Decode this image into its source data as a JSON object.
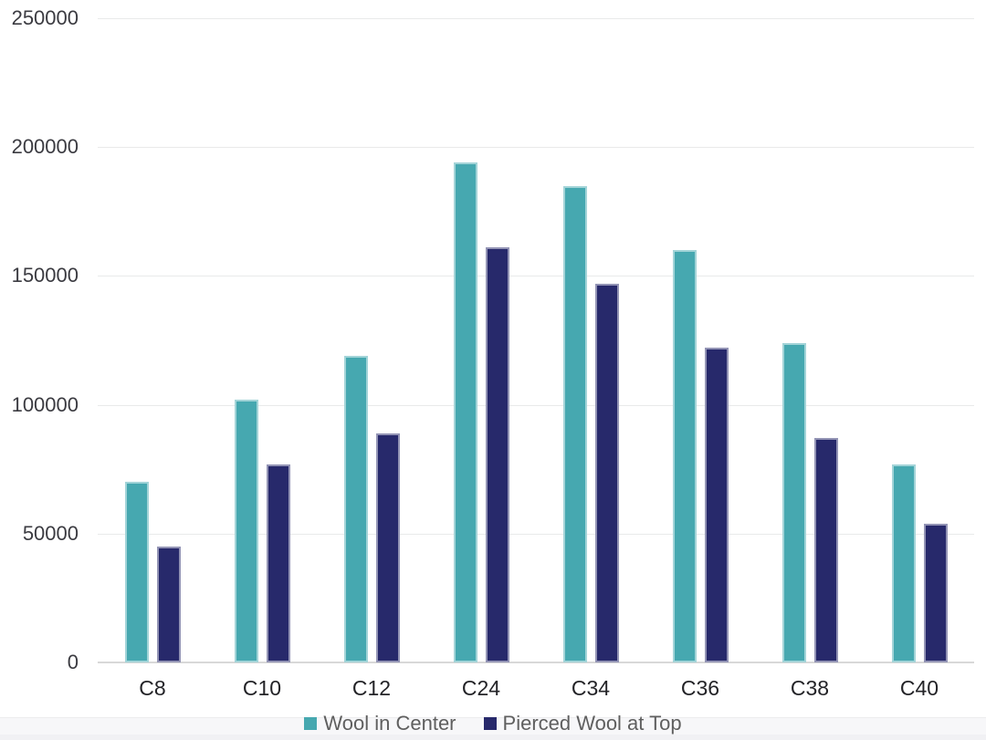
{
  "chart_data": {
    "type": "bar",
    "title": "",
    "categories": [
      "C8",
      "C10",
      "C12",
      "C24",
      "C34",
      "C36",
      "C38",
      "C40"
    ],
    "series": [
      {
        "name": "Wool in Center",
        "color": "#46A8B0",
        "values": [
          70000,
          102000,
          119000,
          194000,
          185000,
          160000,
          124000,
          77000
        ]
      },
      {
        "name": "Pierced Wool at Top",
        "color": "#27296B",
        "values": [
          45000,
          77000,
          89000,
          161000,
          147000,
          122000,
          87000,
          54000
        ]
      }
    ],
    "xlabel": "",
    "ylabel": "",
    "ylim": [
      0,
      250000
    ],
    "yticks": [
      0,
      50000,
      100000,
      150000,
      200000,
      250000
    ],
    "grid": true,
    "legend_position": "bottom"
  },
  "colors": {
    "background": "#ffffff",
    "gridline": "#e9eaea",
    "axis_line": "#d8d8d8",
    "y_tick_text": "#3b3b41",
    "x_tick_text": "#232327",
    "legend_text": "#5f5f5f",
    "legend_band": "#f7f7f9"
  }
}
